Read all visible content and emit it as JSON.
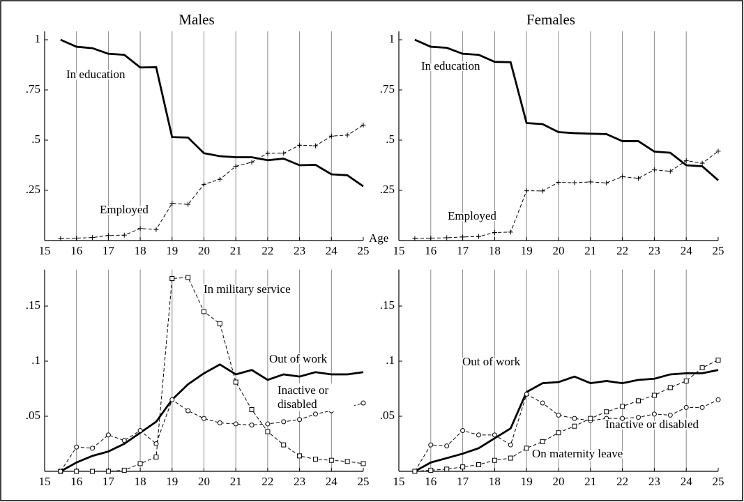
{
  "chart_data": [
    {
      "type": "line",
      "title": "Males",
      "x_label": "Age",
      "x": [
        15.5,
        16,
        16.5,
        17,
        17.5,
        18,
        18.5,
        19,
        19.5,
        20,
        20.5,
        21,
        21.5,
        22,
        22.5,
        23,
        23.5,
        24,
        24.5,
        25
      ],
      "xlim": [
        15,
        25
      ],
      "xticks": [
        15,
        16,
        17,
        18,
        19,
        20,
        21,
        22,
        23,
        24,
        25
      ],
      "ylim": [
        0,
        1
      ],
      "yticks": [
        {
          "value": 0.25,
          "label": ".25"
        },
        {
          "value": 0.5,
          "label": ".5"
        },
        {
          "value": 0.75,
          "label": ".75"
        },
        1
      ],
      "grid": true,
      "series": [
        {
          "name": "In education",
          "color": "#000000",
          "style": "solid",
          "marker": "none",
          "values": [
            1.0,
            0.965,
            0.958,
            0.93,
            0.925,
            0.862,
            0.863,
            0.515,
            0.513,
            0.435,
            0.42,
            0.415,
            0.415,
            0.4,
            0.408,
            0.375,
            0.377,
            0.33,
            0.325,
            0.27
          ]
        },
        {
          "name": "Employed",
          "color": "#000000",
          "style": "dashed",
          "marker": "plus",
          "values": [
            0.01,
            0.012,
            0.015,
            0.025,
            0.027,
            0.06,
            0.055,
            0.185,
            0.18,
            0.28,
            0.305,
            0.37,
            0.39,
            0.435,
            0.435,
            0.475,
            0.472,
            0.52,
            0.525,
            0.575
          ]
        }
      ]
    },
    {
      "type": "line",
      "title": "Females",
      "x": [
        15.5,
        16,
        16.5,
        17,
        17.5,
        18,
        18.5,
        19,
        19.5,
        20,
        20.5,
        21,
        21.5,
        22,
        22.5,
        23,
        23.5,
        24,
        24.5,
        25
      ],
      "xlim": [
        15,
        25
      ],
      "xticks": [
        15,
        16,
        17,
        18,
        19,
        20,
        21,
        22,
        23,
        24,
        25
      ],
      "ylim": [
        0,
        1
      ],
      "yticks": [
        {
          "value": 0.25,
          "label": ".25"
        },
        {
          "value": 0.5,
          "label": ".5"
        },
        {
          "value": 0.75,
          "label": ".75"
        },
        1
      ],
      "grid": true,
      "series": [
        {
          "name": "In education",
          "color": "#000000",
          "style": "solid",
          "marker": "none",
          "values": [
            1.0,
            0.965,
            0.96,
            0.93,
            0.925,
            0.89,
            0.888,
            0.585,
            0.58,
            0.54,
            0.535,
            0.532,
            0.53,
            0.495,
            0.495,
            0.443,
            0.437,
            0.375,
            0.37,
            0.3
          ]
        },
        {
          "name": "Employed",
          "color": "#000000",
          "style": "dashed",
          "marker": "plus",
          "values": [
            0.01,
            0.012,
            0.014,
            0.018,
            0.02,
            0.04,
            0.042,
            0.248,
            0.247,
            0.29,
            0.288,
            0.292,
            0.287,
            0.318,
            0.31,
            0.352,
            0.345,
            0.398,
            0.385,
            0.445
          ]
        }
      ]
    },
    {
      "type": "line",
      "x": [
        15.5,
        16,
        16.5,
        17,
        17.5,
        18,
        18.5,
        19,
        19.5,
        20,
        20.5,
        21,
        21.5,
        22,
        22.5,
        23,
        23.5,
        24,
        24.5,
        25
      ],
      "xlim": [
        15,
        25
      ],
      "xticks": [
        15,
        16,
        17,
        18,
        19,
        20,
        21,
        22,
        23,
        24,
        25
      ],
      "ylim": [
        0,
        0.18
      ],
      "yticks": [
        {
          "value": 0.05,
          "label": ".05"
        },
        {
          "value": 0.1,
          "label": ".1"
        },
        {
          "value": 0.15,
          "label": ".15"
        }
      ],
      "grid": true,
      "series": [
        {
          "name": "In military service",
          "color": "#000000",
          "style": "dashed",
          "marker": "square",
          "values": [
            0,
            0,
            0,
            0,
            0.001,
            0.007,
            0.013,
            0.175,
            0.176,
            0.145,
            0.134,
            0.081,
            0.056,
            0.036,
            0.024,
            0.014,
            0.011,
            0.01,
            0.009,
            0.007
          ]
        },
        {
          "name": "Out of work",
          "color": "#000000",
          "style": "solid",
          "marker": "none",
          "values": [
            0,
            0.008,
            0.014,
            0.018,
            0.025,
            0.035,
            0.045,
            0.065,
            0.079,
            0.089,
            0.097,
            0.088,
            0.092,
            0.083,
            0.088,
            0.086,
            0.09,
            0.088,
            0.088,
            0.09
          ]
        },
        {
          "name": "Inactive or disabled",
          "color": "#000000",
          "style": "dashed",
          "marker": "circle",
          "values": [
            0,
            0.022,
            0.021,
            0.033,
            0.028,
            0.037,
            0.025,
            0.065,
            0.055,
            0.048,
            0.044,
            0.043,
            0.042,
            0.043,
            0.045,
            0.047,
            0.052,
            0.055,
            0.058,
            0.062
          ]
        }
      ]
    },
    {
      "type": "line",
      "x": [
        15.5,
        16,
        16.5,
        17,
        17.5,
        18,
        18.5,
        19,
        19.5,
        20,
        20.5,
        21,
        21.5,
        22,
        22.5,
        23,
        23.5,
        24,
        24.5,
        25
      ],
      "xlim": [
        15,
        25
      ],
      "xticks": [
        15,
        16,
        17,
        18,
        19,
        20,
        21,
        22,
        23,
        24,
        25
      ],
      "ylim": [
        0,
        0.18
      ],
      "yticks": [
        {
          "value": 0.05,
          "label": ".05"
        },
        {
          "value": 0.1,
          "label": ".1"
        },
        {
          "value": 0.15,
          "label": ".15"
        }
      ],
      "grid": true,
      "series": [
        {
          "name": "Out of work",
          "color": "#000000",
          "style": "solid",
          "marker": "none",
          "values": [
            0,
            0.008,
            0.012,
            0.016,
            0.021,
            0.03,
            0.039,
            0.072,
            0.08,
            0.081,
            0.086,
            0.08,
            0.082,
            0.08,
            0.083,
            0.084,
            0.088,
            0.089,
            0.089,
            0.092
          ]
        },
        {
          "name": "Inactive or disabled",
          "color": "#000000",
          "style": "dashed",
          "marker": "circle",
          "values": [
            0,
            0.024,
            0.023,
            0.037,
            0.033,
            0.033,
            0.024,
            0.07,
            0.062,
            0.051,
            0.048,
            0.046,
            0.048,
            0.048,
            0.049,
            0.052,
            0.051,
            0.058,
            0.058,
            0.065
          ]
        },
        {
          "name": "On maternity leave",
          "color": "#000000",
          "style": "dashed",
          "marker": "square",
          "values": [
            0,
            0.001,
            0.002,
            0.004,
            0.006,
            0.01,
            0.012,
            0.021,
            0.027,
            0.035,
            0.041,
            0.048,
            0.054,
            0.059,
            0.064,
            0.069,
            0.076,
            0.082,
            0.094,
            0.101
          ]
        }
      ]
    }
  ]
}
